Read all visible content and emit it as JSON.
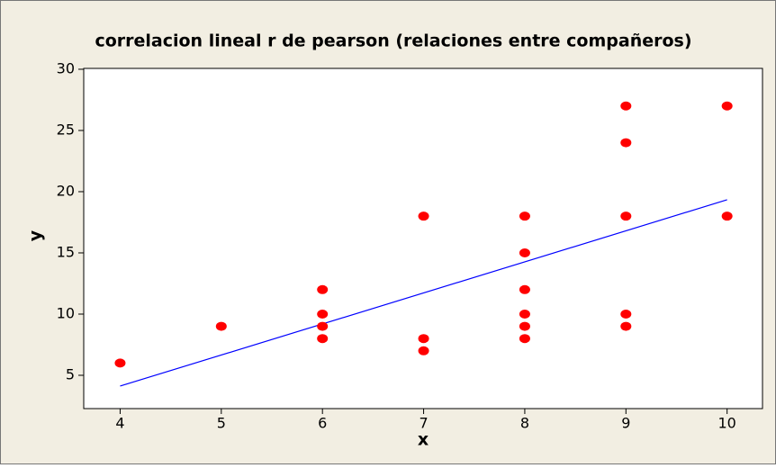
{
  "chart_data": {
    "type": "scatter",
    "title": "correlacion lineal r de pearson (relaciones entre compañeros)",
    "x_label": "x",
    "y_label": "y",
    "x": [
      4,
      5,
      6,
      6,
      6,
      6,
      7,
      7,
      7,
      8,
      8,
      8,
      8,
      8,
      8,
      9,
      9,
      9,
      9,
      9,
      10,
      10
    ],
    "values": [
      6,
      9,
      12,
      10,
      9,
      8,
      18,
      8,
      7,
      18,
      15,
      12,
      10,
      9,
      8,
      27,
      24,
      18,
      10,
      9,
      27,
      18
    ],
    "color": "#ff0000",
    "fit_line": {
      "x": [
        4,
        10
      ],
      "y": [
        4.12,
        19.34
      ],
      "color": "#0000ff"
    },
    "xlim": [
      3.64,
      10.35
    ],
    "xticks": [
      4,
      5,
      6,
      7,
      8,
      9,
      10
    ],
    "ylim": [
      2.28,
      30.07
    ],
    "yticks": [
      5,
      10,
      15,
      20,
      25,
      30
    ]
  }
}
